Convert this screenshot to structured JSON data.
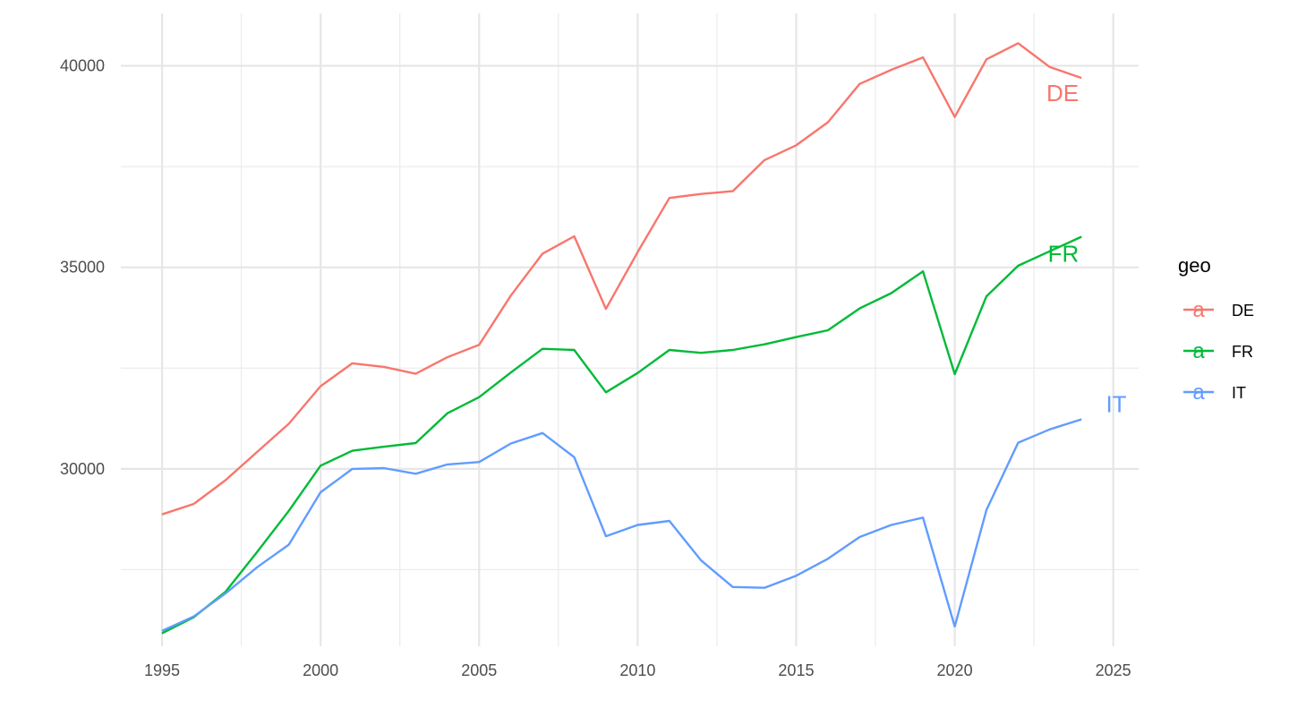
{
  "chart_data": {
    "type": "line",
    "title": "",
    "xlabel": "",
    "ylabel": "",
    "x": [
      1995,
      1996,
      1997,
      1998,
      1999,
      2000,
      2001,
      2002,
      2003,
      2004,
      2005,
      2006,
      2007,
      2008,
      2009,
      2010,
      2011,
      2012,
      2013,
      2014,
      2015,
      2016,
      2017,
      2018,
      2019,
      2020,
      2021,
      2022,
      2023,
      2024
    ],
    "series": [
      {
        "name": "DE",
        "color": "#F8766D",
        "end_label": "DE",
        "values": [
          28870,
          29130,
          29720,
          30420,
          31120,
          32050,
          32620,
          32530,
          32360,
          32770,
          33080,
          34300,
          35340,
          35770,
          33970,
          35380,
          36720,
          36820,
          36890,
          37660,
          38030,
          38600,
          39550,
          39900,
          40210,
          38730,
          40160,
          40560,
          39970,
          39700
        ]
      },
      {
        "name": "FR",
        "color": "#00BA38",
        "end_label": "FR",
        "values": [
          25920,
          26320,
          26950,
          27940,
          28960,
          30080,
          30450,
          30550,
          30640,
          31380,
          31780,
          32390,
          32980,
          32950,
          31900,
          32380,
          32950,
          32880,
          32950,
          33090,
          33270,
          33440,
          33980,
          34360,
          34900,
          32350,
          34280,
          35040,
          35400,
          35760
        ]
      },
      {
        "name": "IT",
        "color": "#619CFF",
        "end_label": "IT",
        "values": [
          25980,
          26340,
          26910,
          27560,
          28120,
          29420,
          30000,
          30020,
          29880,
          30110,
          30170,
          30630,
          30890,
          30290,
          28330,
          28610,
          28710,
          27730,
          27070,
          27050,
          27350,
          27770,
          28310,
          28610,
          28790,
          26090,
          28980,
          30650,
          30980,
          31230
        ]
      }
    ],
    "x_ticks": [
      "1995",
      "2000",
      "2005",
      "2010",
      "2015",
      "2020",
      "2025"
    ],
    "y_ticks": [
      "30000",
      "35000",
      "40000"
    ],
    "xlim": [
      1993.7,
      2025.8
    ],
    "ylim": [
      25600,
      41300
    ],
    "grid": true,
    "legend": {
      "title": "geo",
      "placement": "right",
      "key_glyph": "a",
      "items": [
        "DE",
        "FR",
        "IT"
      ]
    }
  }
}
